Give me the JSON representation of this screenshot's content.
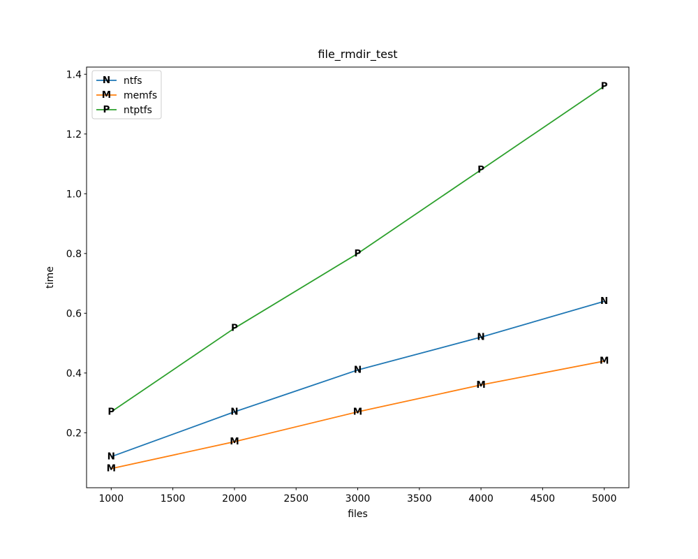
{
  "figure": {
    "background": "#ffffff"
  },
  "chart_data": {
    "type": "line",
    "title": "file_rmdir_test",
    "xlabel": "files",
    "ylabel": "time",
    "x": [
      1000,
      2000,
      3000,
      4000,
      5000
    ],
    "series": [
      {
        "name": "ntfs",
        "marker": "N",
        "color": "#1f77b4",
        "values": [
          0.12,
          0.27,
          0.41,
          0.52,
          0.64
        ]
      },
      {
        "name": "memfs",
        "marker": "M",
        "color": "#ff7f0e",
        "values": [
          0.08,
          0.17,
          0.27,
          0.36,
          0.44
        ]
      },
      {
        "name": "ntptfs",
        "marker": "P",
        "color": "#2ca02c",
        "values": [
          0.27,
          0.55,
          0.8,
          1.08,
          1.36
        ]
      }
    ],
    "xlim": [
      800,
      5200
    ],
    "ylim": [
      0.016,
      1.424
    ],
    "xticks": [
      1000,
      1500,
      2000,
      2500,
      3000,
      3500,
      4000,
      4500,
      5000
    ],
    "xtick_labels": [
      "1000",
      "1500",
      "2000",
      "2500",
      "3000",
      "3500",
      "4000",
      "4500",
      "5000"
    ],
    "yticks": [
      0.2,
      0.4,
      0.6,
      0.8,
      1.0,
      1.2,
      1.4
    ],
    "ytick_labels": [
      "0.2",
      "0.4",
      "0.6",
      "0.8",
      "1.0",
      "1.2",
      "1.4"
    ],
    "grid": false,
    "axis_color": "#000000",
    "text_color": "#000000",
    "legend": {
      "position": "upper left",
      "items": [
        "ntfs",
        "memfs",
        "ntptfs"
      ],
      "border_color": "#cccccc",
      "background": "#ffffff"
    }
  }
}
